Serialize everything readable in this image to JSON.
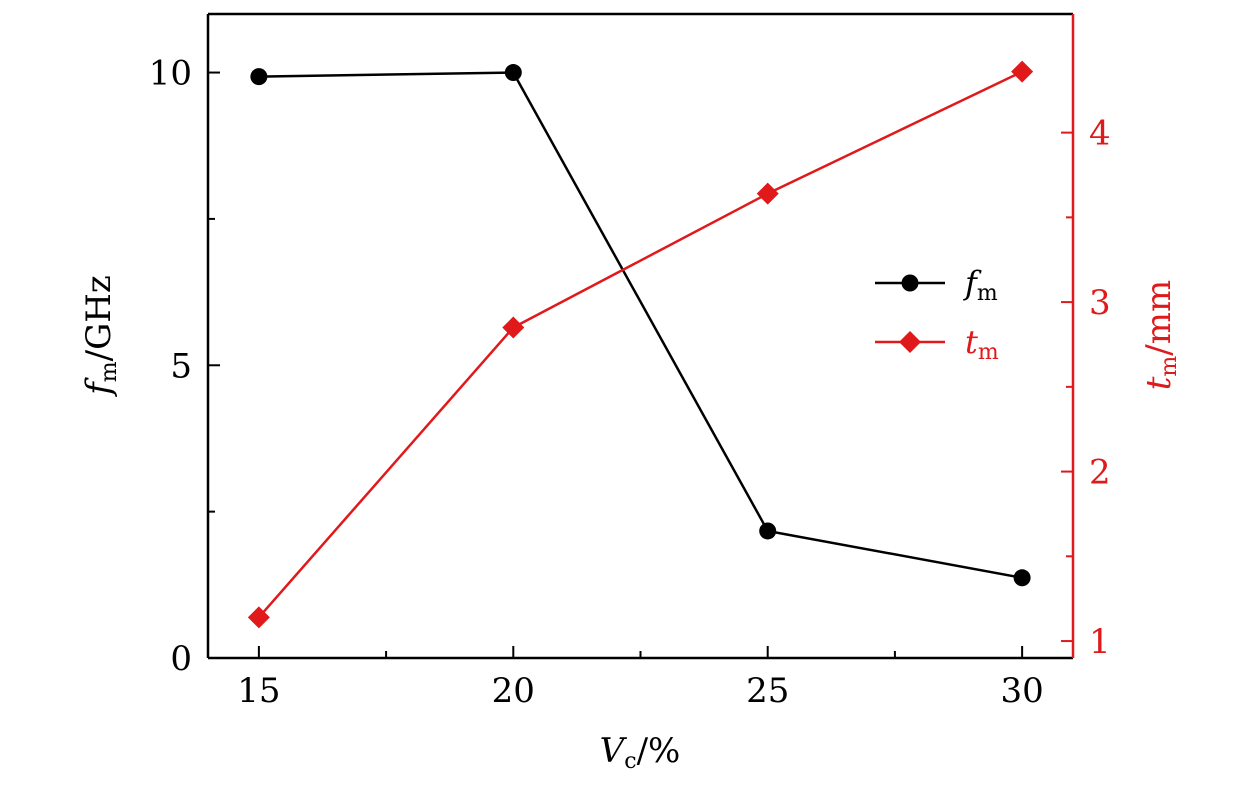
{
  "chart_data": {
    "type": "line",
    "xlabel": {
      "main": "V",
      "sub": "c",
      "suffix": "/%"
    },
    "ylabel_left": {
      "main": "f",
      "sub": "m",
      "suffix": "/GHz"
    },
    "ylabel_right": {
      "main": "t",
      "sub": "m",
      "suffix": "/mm"
    },
    "xlim": [
      14,
      31
    ],
    "ylim_left": [
      0,
      11
    ],
    "ylim_right": [
      0.9,
      4.7
    ],
    "x_ticks": [
      15,
      20,
      25,
      30
    ],
    "x_tick_labels": [
      "15",
      "20",
      "25",
      "30"
    ],
    "y_left_ticks": [
      0,
      5,
      10
    ],
    "y_left_tick_labels": [
      "0",
      "5",
      "10"
    ],
    "y_right_ticks": [
      1,
      2,
      3,
      4
    ],
    "y_right_tick_labels": [
      "1",
      "2",
      "3",
      "4"
    ],
    "grid": false,
    "legend_position": "right",
    "series": [
      {
        "name_main": "f",
        "name_sub": "m",
        "axis": "left",
        "color": "#000000",
        "marker": "circle",
        "x": [
          15,
          20,
          25,
          30
        ],
        "y": [
          9.93,
          10.0,
          2.17,
          1.37
        ]
      },
      {
        "name_main": "t",
        "name_sub": "m",
        "axis": "right",
        "color": "#e0191b",
        "marker": "diamond",
        "x": [
          15,
          20,
          25,
          30
        ],
        "y": [
          1.14,
          2.85,
          3.64,
          4.36
        ]
      }
    ]
  }
}
